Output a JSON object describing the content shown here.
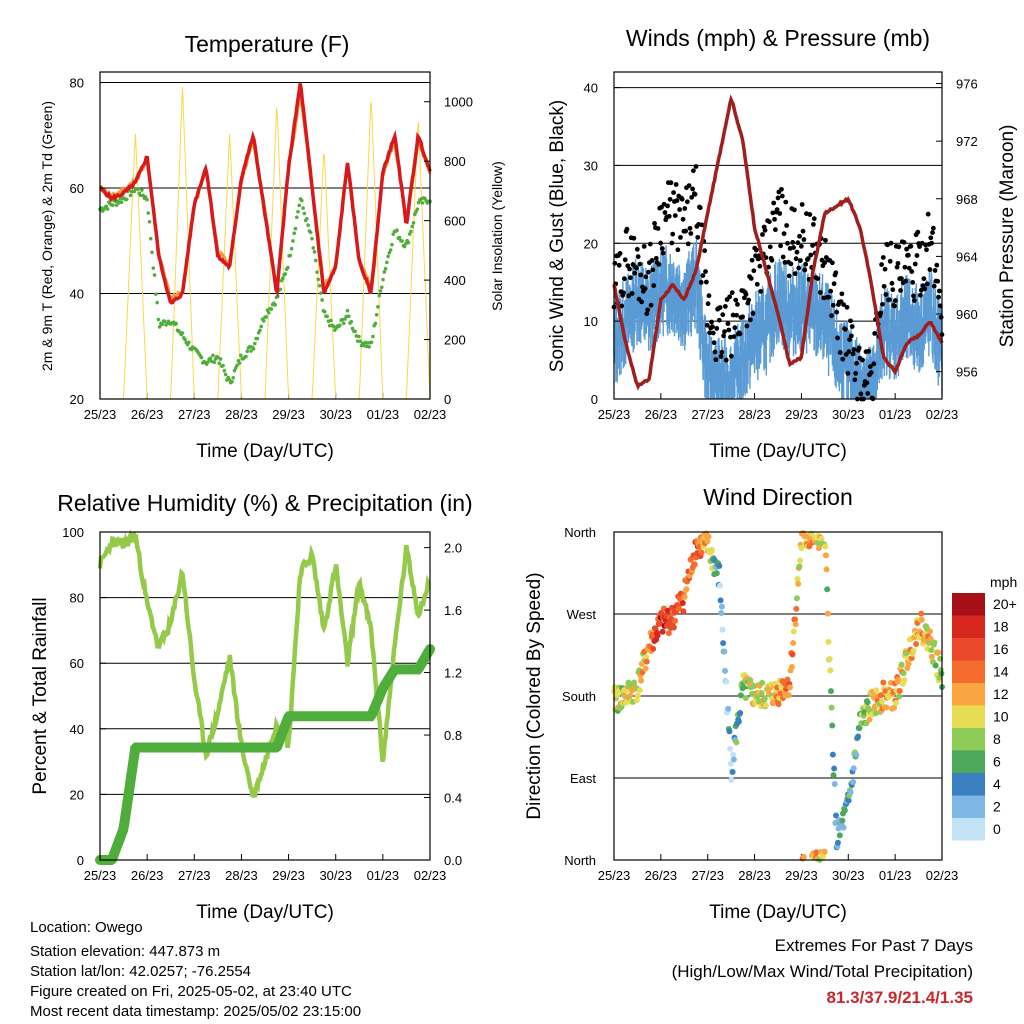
{
  "colors": {
    "red": "#d7191c",
    "orange": "#f59a3d",
    "green_td": "#4fae3b",
    "yellow": "#f8d84a",
    "black": "#000000",
    "blue": "#5b9bd5",
    "maroon": "#a01e1e",
    "rh_light_green": "#94c94a",
    "precip_green": "#4fae3b"
  },
  "speed_colorbar": {
    "unit_label": "mph",
    "labels": [
      "20+",
      "18",
      "16",
      "14",
      "12",
      "10",
      "8",
      "6",
      "4",
      "2",
      "0"
    ],
    "colors": [
      "#a50f15",
      "#d7261e",
      "#ea4a2b",
      "#f46d2f",
      "#fba442",
      "#e6dd55",
      "#8ecb57",
      "#4ea85c",
      "#3a80c0",
      "#7eb8e5",
      "#c3e2f6"
    ]
  },
  "chart_data": [
    {
      "type": "line",
      "title": "Temperature (F)",
      "xlabel": "Time (Day/UTC)",
      "ylabel_left": "2m & 9m T (Red, Orange) & 2m Td (Green)",
      "ylabel_right": "Solar Insolation (Yellow)",
      "x_ticks": [
        "25/23",
        "26/23",
        "27/23",
        "28/23",
        "29/23",
        "30/23",
        "01/23",
        "02/23"
      ],
      "ylim_left": [
        20,
        82
      ],
      "y_ticks_left": [
        "20",
        "40",
        "60",
        "80"
      ],
      "ylim_right": [
        0,
        1100
      ],
      "y_ticks_right": [
        "0",
        "200",
        "400",
        "600",
        "800",
        "1000"
      ],
      "grid_y": [
        40,
        60,
        80
      ],
      "x": [
        0,
        0.25,
        0.5,
        0.75,
        1.0,
        1.25,
        1.5,
        1.75,
        2.0,
        2.25,
        2.5,
        2.75,
        3.0,
        3.25,
        3.5,
        3.75,
        4.0,
        4.25,
        4.5,
        4.75,
        5.0,
        5.25,
        5.5,
        5.75,
        6.0,
        6.25,
        6.5,
        6.75,
        7.0
      ],
      "series": [
        {
          "name": "2m T",
          "values": [
            60,
            58,
            59,
            61,
            66,
            47,
            38,
            40,
            57,
            64,
            47,
            45,
            62,
            70,
            55,
            40,
            64,
            80,
            60,
            40,
            45,
            65,
            46,
            40,
            63,
            70,
            53,
            70,
            63
          ]
        },
        {
          "name": "9m T",
          "values": [
            60,
            58.5,
            59.5,
            61.5,
            65,
            47.5,
            39,
            40.5,
            56.5,
            63.5,
            48,
            45.5,
            61.5,
            69,
            55.5,
            40.5,
            63.5,
            78,
            60,
            41,
            45.5,
            64.5,
            46.5,
            41,
            62.5,
            69,
            53.5,
            69,
            63
          ]
        },
        {
          "name": "2m Td",
          "values": [
            56,
            57,
            58,
            60,
            58,
            34,
            35,
            32,
            29,
            27,
            28,
            23,
            28,
            30,
            36,
            39,
            46,
            58,
            50,
            36,
            33,
            36,
            31,
            30,
            43,
            52,
            49,
            57,
            58
          ]
        },
        {
          "name": "Solar Insolation",
          "values": [
            0,
            0,
            0,
            900,
            0,
            0,
            0,
            1050,
            0,
            0,
            0,
            900,
            0,
            0,
            0,
            1000,
            0,
            0,
            0,
            850,
            0,
            0,
            0,
            1030,
            0,
            0,
            0,
            950,
            0
          ]
        }
      ]
    },
    {
      "type": "scatter",
      "title": "Winds (mph) & Pressure (mb)",
      "xlabel": "Time (Day/UTC)",
      "ylabel_left": "Sonic Wind & Gust (Blue, Black)",
      "ylabel_right": "Station Pressure (Maroon)",
      "x_ticks": [
        "25/23",
        "26/23",
        "27/23",
        "28/23",
        "29/23",
        "30/23",
        "01/23",
        "02/23"
      ],
      "ylim_left": [
        0,
        42
      ],
      "y_ticks_left": [
        "0",
        "10",
        "20",
        "30",
        "40"
      ],
      "ylim_right": [
        954.1,
        976.8
      ],
      "y_ticks_right": [
        "956",
        "960",
        "964",
        "968",
        "972",
        "976"
      ],
      "grid_y": [
        10,
        20,
        30,
        40
      ],
      "x": [
        0,
        0.25,
        0.5,
        0.75,
        1.0,
        1.25,
        1.5,
        1.75,
        2.0,
        2.25,
        2.5,
        2.75,
        3.0,
        3.25,
        3.5,
        3.75,
        4.0,
        4.25,
        4.5,
        4.75,
        5.0,
        5.25,
        5.5,
        5.75,
        6.0,
        6.25,
        6.5,
        6.75,
        7.0
      ],
      "series": [
        {
          "name": "Sonic Wind",
          "values": [
            7,
            10,
            13,
            11,
            14,
            14,
            12,
            15,
            3,
            2,
            2,
            5,
            8,
            9,
            13,
            11,
            12,
            11,
            10,
            6,
            4,
            2,
            1,
            9,
            8,
            10,
            9,
            11,
            6
          ]
        },
        {
          "name": "Gust",
          "values": [
            13,
            18,
            17,
            15,
            23,
            24,
            22,
            26,
            11,
            8,
            9,
            12,
            16,
            18,
            24,
            20,
            21,
            19,
            17,
            12,
            7,
            3,
            2,
            17,
            16,
            16,
            17,
            20,
            12
          ]
        },
        {
          "name": "Station Pressure",
          "values": [
            962,
            958,
            955,
            955.5,
            961,
            962,
            961,
            963,
            967,
            971,
            975,
            972,
            966,
            963,
            960,
            956.5,
            957,
            963,
            967,
            967.5,
            968,
            966,
            962,
            957,
            956,
            958,
            958.5,
            959.5,
            958
          ]
        }
      ]
    },
    {
      "type": "line",
      "title": "Relative Humidity (%) & Precipitation (in)",
      "xlabel": "Time (Day/UTC)",
      "ylabel": "Percent & Total Rainfall",
      "x_ticks": [
        "25/23",
        "26/23",
        "27/23",
        "28/23",
        "29/23",
        "30/23",
        "01/23",
        "02/23"
      ],
      "ylim_left": [
        0,
        100
      ],
      "y_ticks_left": [
        "0",
        "20",
        "40",
        "60",
        "80",
        "100"
      ],
      "ylim_right": [
        0,
        2.1
      ],
      "y_ticks_right": [
        "0.0",
        "0.4",
        "0.8",
        "1.2",
        "1.6",
        "2.0"
      ],
      "grid_y": [
        20,
        40,
        60,
        80
      ],
      "x": [
        0,
        0.25,
        0.5,
        0.75,
        1.0,
        1.25,
        1.5,
        1.75,
        2.0,
        2.25,
        2.5,
        2.75,
        3.0,
        3.25,
        3.5,
        3.75,
        4.0,
        4.25,
        4.5,
        4.75,
        5.0,
        5.25,
        5.5,
        5.75,
        6.0,
        6.25,
        6.5,
        6.75,
        7.0
      ],
      "series": [
        {
          "name": "Relative Humidity",
          "values": [
            90,
            97,
            96,
            99,
            78,
            65,
            72,
            88,
            55,
            32,
            45,
            62,
            35,
            19,
            30,
            42,
            35,
            88,
            93,
            70,
            90,
            60,
            85,
            70,
            30,
            65,
            95,
            75,
            85
          ]
        },
        {
          "name": "Total Precipitation",
          "values": [
            0,
            0,
            0.2,
            0.72,
            0.72,
            0.72,
            0.72,
            0.72,
            0.72,
            0.72,
            0.72,
            0.72,
            0.72,
            0.72,
            0.72,
            0.72,
            0.92,
            0.92,
            0.92,
            0.92,
            0.92,
            0.92,
            0.92,
            0.92,
            1.1,
            1.22,
            1.22,
            1.22,
            1.35
          ]
        }
      ]
    },
    {
      "type": "scatter",
      "title": "Wind Direction",
      "xlabel": "Time (Day/UTC)",
      "ylabel": "Direction (Colored By Speed)",
      "x_ticks": [
        "25/23",
        "26/23",
        "27/23",
        "28/23",
        "29/23",
        "30/23",
        "01/23",
        "02/23"
      ],
      "ylim": [
        0,
        360
      ],
      "y_ticks": [
        "North",
        "East",
        "South",
        "West",
        "North"
      ],
      "grid_y": [
        90,
        180,
        270
      ],
      "x": [
        0,
        0.25,
        0.5,
        0.75,
        1.0,
        1.25,
        1.5,
        1.75,
        2.0,
        2.25,
        2.5,
        2.75,
        3.0,
        3.25,
        3.5,
        3.75,
        4.0,
        4.25,
        4.5,
        4.75,
        5.0,
        5.25,
        5.5,
        5.75,
        6.0,
        6.25,
        6.5,
        6.75,
        7.0
      ],
      "direction": [
        175,
        180,
        190,
        235,
        260,
        265,
        290,
        345,
        345,
        310,
        100,
        190,
        180,
        180,
        185,
        195,
        350,
        355,
        355,
        20,
        60,
        150,
        170,
        180,
        180,
        220,
        260,
        240,
        200
      ],
      "speed": [
        8,
        10,
        10,
        12,
        18,
        16,
        14,
        16,
        10,
        4,
        2,
        8,
        10,
        10,
        12,
        14,
        10,
        12,
        10,
        4,
        4,
        6,
        10,
        12,
        12,
        10,
        12,
        10,
        8
      ]
    }
  ],
  "info": {
    "location": "Location: Owego",
    "elevation": "Station elevation: 447.873 m",
    "latlon": "Station lat/lon: 42.0257; -76.2554",
    "created": "Figure created on Fri, 2025-05-02, at 23:40 UTC",
    "latest": "Most recent data timestamp: 2025/05/02 23:15:00"
  },
  "extremes": {
    "title": "Extremes For Past 7 Days",
    "subtitle": "(High/Low/Max Wind/Total Precipitation)",
    "values": "81.3/37.9/21.4/1.35"
  }
}
